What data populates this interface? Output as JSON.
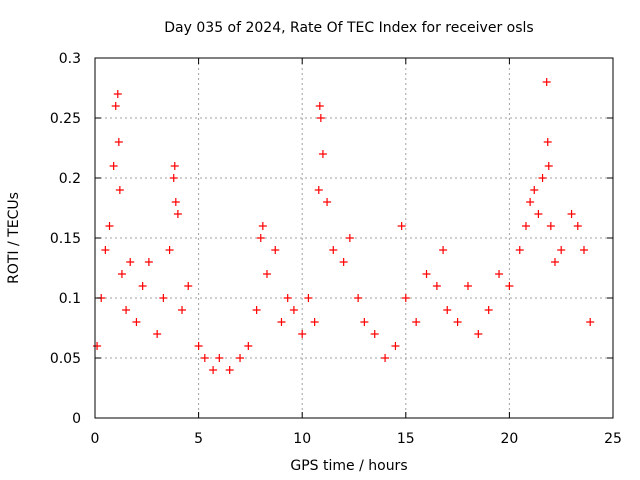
{
  "chart_data": {
    "type": "scatter",
    "title": "Day 035 of 2024, Rate Of TEC Index for receiver osls",
    "xlabel": "GPS time / hours",
    "ylabel": "ROTI / TECUs",
    "xlim": [
      0,
      25
    ],
    "ylim": [
      0,
      0.3
    ],
    "x_ticks": [
      {
        "value": 0,
        "label": "0"
      },
      {
        "value": 5,
        "label": "5"
      },
      {
        "value": 10,
        "label": "10"
      },
      {
        "value": 15,
        "label": "15"
      },
      {
        "value": 20,
        "label": "20"
      },
      {
        "value": 25,
        "label": "25"
      }
    ],
    "y_ticks": [
      {
        "value": 0,
        "label": "0"
      },
      {
        "value": 0.05,
        "label": "0.05"
      },
      {
        "value": 0.1,
        "label": "0.1"
      },
      {
        "value": 0.15,
        "label": "0.15"
      },
      {
        "value": 0.2,
        "label": "0.2"
      },
      {
        "value": 0.25,
        "label": "0.25"
      },
      {
        "value": 0.3,
        "label": "0.3"
      }
    ],
    "grid": true,
    "marker": "+",
    "series": [
      {
        "name": "ROTI osls",
        "color": "#ff0000",
        "points_note": "dense scatter; representative points sampled from the figure",
        "x": [
          0.1,
          0.3,
          0.5,
          0.7,
          0.9,
          1.0,
          1.1,
          1.15,
          1.2,
          1.3,
          1.5,
          1.7,
          2.0,
          2.3,
          2.6,
          3.0,
          3.3,
          3.6,
          3.8,
          3.85,
          3.9,
          4.0,
          4.2,
          4.5,
          5.0,
          5.3,
          5.7,
          6.0,
          6.5,
          7.0,
          7.4,
          7.8,
          8.0,
          8.1,
          8.3,
          8.7,
          9.0,
          9.3,
          9.6,
          10.0,
          10.3,
          10.6,
          10.8,
          10.85,
          10.9,
          11.0,
          11.2,
          11.5,
          12.0,
          12.3,
          12.7,
          13.0,
          13.5,
          14.0,
          14.5,
          14.8,
          15.0,
          15.5,
          16.0,
          16.5,
          16.8,
          17.0,
          17.5,
          18.0,
          18.5,
          19.0,
          19.5,
          20.0,
          20.5,
          20.8,
          21.0,
          21.2,
          21.4,
          21.6,
          21.8,
          21.85,
          21.9,
          22.0,
          22.2,
          22.5,
          23.0,
          23.3,
          23.6,
          23.9
        ],
        "y": [
          0.06,
          0.1,
          0.14,
          0.16,
          0.21,
          0.26,
          0.27,
          0.23,
          0.19,
          0.12,
          0.09,
          0.13,
          0.08,
          0.11,
          0.13,
          0.07,
          0.1,
          0.14,
          0.2,
          0.21,
          0.18,
          0.17,
          0.09,
          0.11,
          0.06,
          0.05,
          0.04,
          0.05,
          0.04,
          0.05,
          0.06,
          0.09,
          0.15,
          0.16,
          0.12,
          0.14,
          0.08,
          0.1,
          0.09,
          0.07,
          0.1,
          0.08,
          0.19,
          0.26,
          0.25,
          0.22,
          0.18,
          0.14,
          0.13,
          0.15,
          0.1,
          0.08,
          0.07,
          0.05,
          0.06,
          0.16,
          0.1,
          0.08,
          0.12,
          0.11,
          0.14,
          0.09,
          0.08,
          0.11,
          0.07,
          0.09,
          0.12,
          0.11,
          0.14,
          0.16,
          0.18,
          0.19,
          0.17,
          0.2,
          0.28,
          0.23,
          0.21,
          0.16,
          0.13,
          0.14,
          0.17,
          0.16,
          0.14,
          0.08
        ]
      }
    ]
  }
}
